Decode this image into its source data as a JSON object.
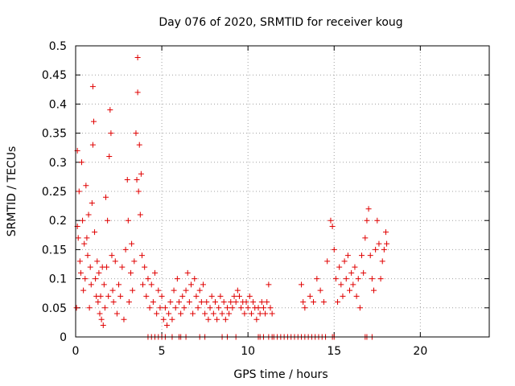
{
  "chart_data": {
    "type": "scatter",
    "title": "Day 076 of 2020, SRMTID for receiver koug",
    "xlabel": "GPS time / hours",
    "ylabel": "SRMTID / TECUs",
    "xlim": [
      0,
      24
    ],
    "ylim": [
      0,
      0.5
    ],
    "xticks": [
      0,
      5,
      10,
      15,
      20
    ],
    "xtick_labels": [
      "0",
      "5",
      "10",
      "15",
      "20"
    ],
    "yticks": [
      0,
      0.05,
      0.1,
      0.15,
      0.2,
      0.25,
      0.3,
      0.35,
      0.4,
      0.45,
      0.5
    ],
    "ytick_labels": [
      "0",
      "0.05",
      "0.1",
      "0.15",
      "0.2",
      "0.25",
      "0.3",
      "0.35",
      "0.4",
      "0.45",
      "0.5"
    ],
    "grid": true,
    "marker": "+",
    "series": [
      {
        "name": "SRMTID",
        "color": "#e00000",
        "points": [
          [
            0.05,
            0.05
          ],
          [
            0.1,
            0.19
          ],
          [
            0.1,
            0.32
          ],
          [
            0.15,
            0.17
          ],
          [
            0.2,
            0.25
          ],
          [
            0.25,
            0.13
          ],
          [
            0.3,
            0.11
          ],
          [
            0.35,
            0.3
          ],
          [
            0.4,
            0.2
          ],
          [
            0.45,
            0.08
          ],
          [
            0.5,
            0.16
          ],
          [
            0.55,
            0.1
          ],
          [
            0.6,
            0.26
          ],
          [
            0.65,
            0.17
          ],
          [
            0.7,
            0.14
          ],
          [
            0.75,
            0.21
          ],
          [
            0.8,
            0.05
          ],
          [
            0.85,
            0.12
          ],
          [
            0.9,
            0.09
          ],
          [
            0.95,
            0.23
          ],
          [
            1.0,
            0.33
          ],
          [
            1.0,
            0.43
          ],
          [
            1.05,
            0.37
          ],
          [
            1.1,
            0.18
          ],
          [
            1.15,
            0.1
          ],
          [
            1.2,
            0.07
          ],
          [
            1.25,
            0.13
          ],
          [
            1.3,
            0.06
          ],
          [
            1.35,
            0.11
          ],
          [
            1.4,
            0.04
          ],
          [
            1.45,
            0.07
          ],
          [
            1.5,
            0.03
          ],
          [
            1.55,
            0.12
          ],
          [
            1.6,
            0.02
          ],
          [
            1.65,
            0.09
          ],
          [
            1.7,
            0.05
          ],
          [
            1.75,
            0.24
          ],
          [
            1.8,
            0.12
          ],
          [
            1.85,
            0.2
          ],
          [
            1.9,
            0.07
          ],
          [
            1.95,
            0.31
          ],
          [
            2.0,
            0.39
          ],
          [
            2.05,
            0.35
          ],
          [
            2.1,
            0.14
          ],
          [
            2.15,
            0.08
          ],
          [
            2.2,
            0.06
          ],
          [
            2.3,
            0.13
          ],
          [
            2.4,
            0.04
          ],
          [
            2.5,
            0.09
          ],
          [
            2.6,
            0.07
          ],
          [
            2.7,
            0.12
          ],
          [
            2.8,
            0.03
          ],
          [
            2.9,
            0.15
          ],
          [
            3.0,
            0.27
          ],
          [
            3.05,
            0.2
          ],
          [
            3.1,
            0.06
          ],
          [
            3.2,
            0.11
          ],
          [
            3.25,
            0.16
          ],
          [
            3.3,
            0.08
          ],
          [
            3.4,
            0.13
          ],
          [
            3.5,
            0.35
          ],
          [
            3.55,
            0.27
          ],
          [
            3.6,
            0.48
          ],
          [
            3.6,
            0.42
          ],
          [
            3.65,
            0.25
          ],
          [
            3.7,
            0.33
          ],
          [
            3.75,
            0.21
          ],
          [
            3.8,
            0.28
          ],
          [
            3.85,
            0.14
          ],
          [
            3.9,
            0.09
          ],
          [
            4.0,
            0.12
          ],
          [
            4.1,
            0.07
          ],
          [
            4.2,
            0.1
          ],
          [
            4.3,
            0.05
          ],
          [
            4.4,
            0.09
          ],
          [
            4.5,
            0.06
          ],
          [
            4.6,
            0.11
          ],
          [
            4.7,
            0.04
          ],
          [
            4.8,
            0.08
          ],
          [
            4.9,
            0.05
          ],
          [
            5.0,
            0.07
          ],
          [
            5.1,
            0.03
          ],
          [
            5.2,
            0.05
          ],
          [
            5.3,
            0.02
          ],
          [
            5.4,
            0.04
          ],
          [
            5.5,
            0.06
          ],
          [
            5.6,
            0.03
          ],
          [
            5.7,
            0.08
          ],
          [
            5.8,
            0.05
          ],
          [
            5.9,
            0.1
          ],
          [
            6.0,
            0.06
          ],
          [
            6.1,
            0.04
          ],
          [
            6.2,
            0.07
          ],
          [
            6.3,
            0.05
          ],
          [
            6.4,
            0.08
          ],
          [
            6.5,
            0.11
          ],
          [
            6.6,
            0.06
          ],
          [
            6.7,
            0.09
          ],
          [
            6.8,
            0.04
          ],
          [
            6.9,
            0.1
          ],
          [
            7.0,
            0.07
          ],
          [
            7.1,
            0.05
          ],
          [
            7.2,
            0.08
          ],
          [
            7.3,
            0.06
          ],
          [
            7.4,
            0.09
          ],
          [
            7.5,
            0.04
          ],
          [
            7.6,
            0.06
          ],
          [
            7.7,
            0.03
          ],
          [
            7.8,
            0.05
          ],
          [
            7.9,
            0.07
          ],
          [
            8.0,
            0.04
          ],
          [
            8.1,
            0.06
          ],
          [
            8.2,
            0.03
          ],
          [
            8.3,
            0.05
          ],
          [
            8.4,
            0.07
          ],
          [
            8.5,
            0.04
          ],
          [
            8.6,
            0.06
          ],
          [
            8.7,
            0.03
          ],
          [
            8.8,
            0.05
          ],
          [
            8.9,
            0.04
          ],
          [
            9.0,
            0.06
          ],
          [
            9.1,
            0.05
          ],
          [
            9.2,
            0.07
          ],
          [
            9.3,
            0.06
          ],
          [
            9.4,
            0.08
          ],
          [
            9.5,
            0.07
          ],
          [
            9.6,
            0.05
          ],
          [
            9.7,
            0.06
          ],
          [
            9.8,
            0.04
          ],
          [
            9.9,
            0.06
          ],
          [
            10.0,
            0.05
          ],
          [
            10.1,
            0.07
          ],
          [
            10.2,
            0.04
          ],
          [
            10.3,
            0.06
          ],
          [
            10.4,
            0.05
          ],
          [
            10.5,
            0.03
          ],
          [
            10.6,
            0.05
          ],
          [
            10.7,
            0.04
          ],
          [
            10.8,
            0.06
          ],
          [
            10.9,
            0.05
          ],
          [
            11.0,
            0.04
          ],
          [
            11.1,
            0.06
          ],
          [
            11.2,
            0.09
          ],
          [
            11.3,
            0.05
          ],
          [
            11.4,
            0.04
          ],
          [
            13.1,
            0.09
          ],
          [
            13.2,
            0.06
          ],
          [
            13.3,
            0.05
          ],
          [
            13.6,
            0.07
          ],
          [
            13.8,
            0.06
          ],
          [
            14.0,
            0.1
          ],
          [
            14.2,
            0.08
          ],
          [
            14.4,
            0.06
          ],
          [
            14.6,
            0.13
          ],
          [
            14.8,
            0.2
          ],
          [
            14.9,
            0.19
          ],
          [
            15.0,
            0.15
          ],
          [
            15.1,
            0.1
          ],
          [
            15.2,
            0.06
          ],
          [
            15.3,
            0.12
          ],
          [
            15.4,
            0.09
          ],
          [
            15.5,
            0.07
          ],
          [
            15.6,
            0.13
          ],
          [
            15.7,
            0.1
          ],
          [
            15.8,
            0.14
          ],
          [
            15.9,
            0.08
          ],
          [
            16.0,
            0.11
          ],
          [
            16.1,
            0.09
          ],
          [
            16.2,
            0.12
          ],
          [
            16.3,
            0.07
          ],
          [
            16.4,
            0.1
          ],
          [
            16.5,
            0.05
          ],
          [
            16.6,
            0.14
          ],
          [
            16.7,
            0.11
          ],
          [
            16.8,
            0.17
          ],
          [
            16.9,
            0.2
          ],
          [
            17.0,
            0.22
          ],
          [
            17.1,
            0.14
          ],
          [
            17.2,
            0.1
          ],
          [
            17.3,
            0.08
          ],
          [
            17.4,
            0.15
          ],
          [
            17.5,
            0.2
          ],
          [
            17.6,
            0.16
          ],
          [
            17.7,
            0.1
          ],
          [
            17.8,
            0.13
          ],
          [
            17.9,
            0.15
          ],
          [
            18.0,
            0.18
          ],
          [
            18.05,
            0.16
          ]
        ]
      }
    ],
    "zero_points_x": [
      4.2,
      4.4,
      4.6,
      4.8,
      5.0,
      5.2,
      5.6,
      6.0,
      6.1,
      6.4,
      7.2,
      7.5,
      8.5,
      8.8,
      9.3,
      10.6,
      10.7,
      10.9,
      11.2,
      11.4,
      11.5,
      11.7,
      11.9,
      12.1,
      12.3,
      12.5,
      12.7,
      12.9,
      13.1,
      13.3,
      13.5,
      13.7,
      13.9,
      14.1,
      14.3,
      14.5,
      14.9,
      15.0,
      16.8,
      16.9,
      17.2
    ]
  }
}
